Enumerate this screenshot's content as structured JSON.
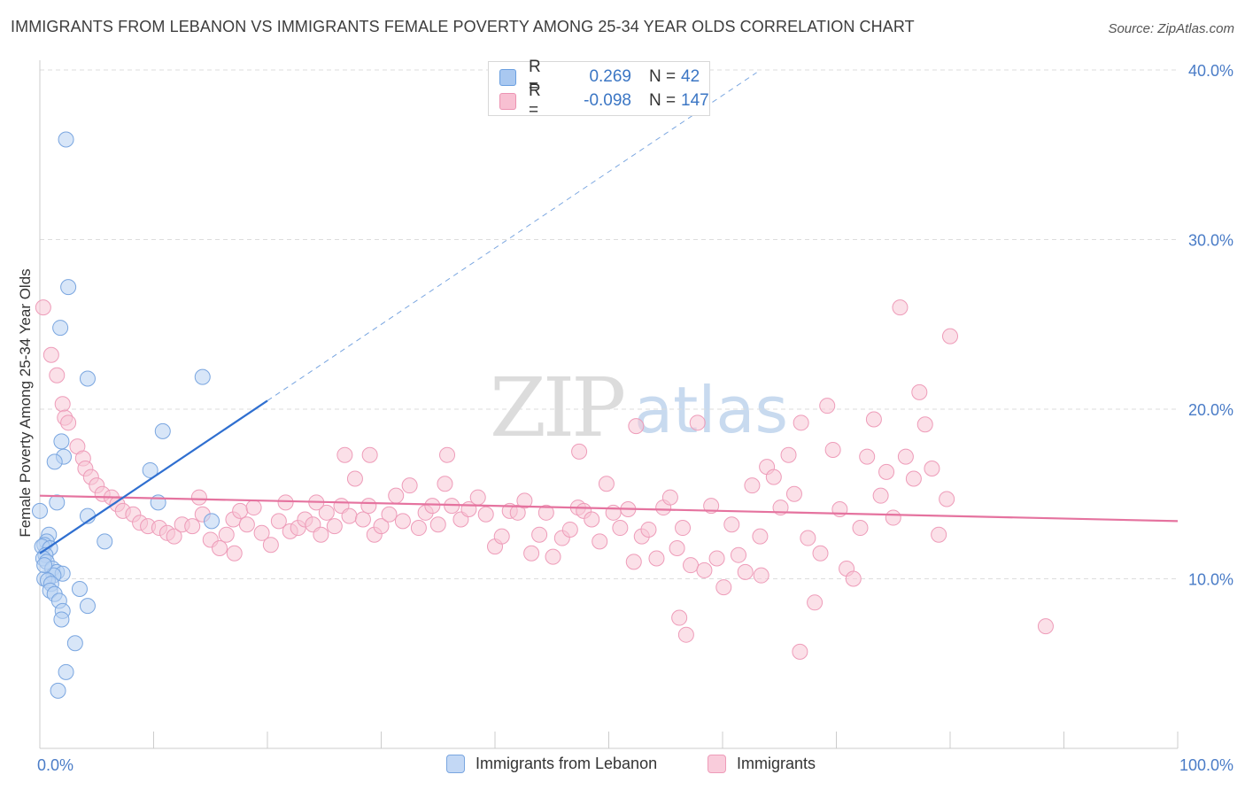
{
  "title": "IMMIGRANTS FROM LEBANON VS IMMIGRANTS FEMALE POVERTY AMONG 25-34 YEAR OLDS CORRELATION CHART",
  "source": "Source: ZipAtlas.com",
  "watermark": {
    "zip": "ZIP",
    "atlas": "atlas"
  },
  "legend_top": {
    "rows": [
      {
        "r_label": "R =",
        "r_value": "0.269",
        "n_label": "N =",
        "n_value": "42",
        "color": "#a9c8f0",
        "stroke": "#6a9fe0"
      },
      {
        "r_label": "R =",
        "r_value": "-0.098",
        "n_label": "N =",
        "n_value": "147",
        "color": "#f8c0d2",
        "stroke": "#ec93b2"
      }
    ]
  },
  "legend_bottom": {
    "items": [
      {
        "label": "Immigrants from Lebanon",
        "color": "#c3d8f5",
        "stroke": "#7aa6e0"
      },
      {
        "label": "Immigrants",
        "color": "#f9ccdb",
        "stroke": "#ee9cb9"
      }
    ]
  },
  "chart_data": {
    "type": "scatter",
    "ylabel": "Female Poverty Among 25-34 Year Olds",
    "xlim": [
      0,
      100
    ],
    "ylim": [
      0,
      40
    ],
    "x_tick_labels": [
      {
        "value": 0,
        "label": "0.0%"
      },
      {
        "value": 100,
        "label": "100.0%"
      }
    ],
    "y_tick_labels": [
      {
        "value": 10,
        "label": "10.0%"
      },
      {
        "value": 20,
        "label": "20.0%"
      },
      {
        "value": 30,
        "label": "30.0%"
      },
      {
        "value": 40,
        "label": "40.0%"
      }
    ],
    "grid": true,
    "series": [
      {
        "name": "Immigrants from Lebanon",
        "color": "#7aa6e0",
        "fill": "#b8d2f3",
        "trend": {
          "color": "#2f6fd0",
          "x0": 0,
          "y0": 11.5,
          "x1": 20,
          "y1": 20.5,
          "dash_to_x": 63
        },
        "points": [
          [
            2.3,
            35.9
          ],
          [
            2.5,
            27.2
          ],
          [
            1.8,
            24.8
          ],
          [
            4.2,
            21.8
          ],
          [
            14.3,
            21.9
          ],
          [
            10.8,
            18.7
          ],
          [
            1.9,
            18.1
          ],
          [
            2.1,
            17.2
          ],
          [
            1.3,
            16.9
          ],
          [
            9.7,
            16.4
          ],
          [
            10.4,
            14.5
          ],
          [
            1.5,
            14.5
          ],
          [
            0.0,
            14.0
          ],
          [
            4.2,
            13.7
          ],
          [
            15.1,
            13.4
          ],
          [
            0.8,
            12.6
          ],
          [
            0.6,
            12.2
          ],
          [
            5.7,
            12.2
          ],
          [
            0.4,
            12.0
          ],
          [
            0.2,
            11.9
          ],
          [
            0.9,
            11.8
          ],
          [
            0.5,
            11.4
          ],
          [
            0.3,
            11.2
          ],
          [
            0.6,
            11.0
          ],
          [
            1.1,
            10.6
          ],
          [
            1.5,
            10.4
          ],
          [
            2.0,
            10.3
          ],
          [
            1.2,
            10.2
          ],
          [
            0.4,
            10.0
          ],
          [
            0.7,
            9.9
          ],
          [
            1.0,
            9.7
          ],
          [
            3.5,
            9.4
          ],
          [
            0.9,
            9.3
          ],
          [
            1.3,
            9.1
          ],
          [
            1.7,
            8.7
          ],
          [
            4.2,
            8.4
          ],
          [
            2.0,
            8.1
          ],
          [
            1.9,
            7.6
          ],
          [
            3.1,
            6.2
          ],
          [
            2.3,
            4.5
          ],
          [
            1.6,
            3.4
          ],
          [
            0.4,
            10.8
          ]
        ]
      },
      {
        "name": "Immigrants",
        "color": "#ee9cb9",
        "fill": "#f8c6d6",
        "trend": {
          "color": "#e5739f",
          "x0": 0,
          "y0": 14.9,
          "x1": 100,
          "y1": 13.4
        },
        "points": [
          [
            0.3,
            26.0
          ],
          [
            1.0,
            23.2
          ],
          [
            1.5,
            22.0
          ],
          [
            2.0,
            20.3
          ],
          [
            2.2,
            19.5
          ],
          [
            2.5,
            19.2
          ],
          [
            3.3,
            17.8
          ],
          [
            3.8,
            17.1
          ],
          [
            4.0,
            16.5
          ],
          [
            4.5,
            16.0
          ],
          [
            5.0,
            15.5
          ],
          [
            5.5,
            15.0
          ],
          [
            6.3,
            14.8
          ],
          [
            6.8,
            14.4
          ],
          [
            7.3,
            14.0
          ],
          [
            8.2,
            13.8
          ],
          [
            8.8,
            13.3
          ],
          [
            9.5,
            13.1
          ],
          [
            10.5,
            13.0
          ],
          [
            11.2,
            12.7
          ],
          [
            11.8,
            12.5
          ],
          [
            12.5,
            13.2
          ],
          [
            13.4,
            13.1
          ],
          [
            14.3,
            13.8
          ],
          [
            14.0,
            14.8
          ],
          [
            15.0,
            12.3
          ],
          [
            15.8,
            11.8
          ],
          [
            16.4,
            12.6
          ],
          [
            17.0,
            13.5
          ],
          [
            17.6,
            14.0
          ],
          [
            18.2,
            13.2
          ],
          [
            18.8,
            14.2
          ],
          [
            19.5,
            12.7
          ],
          [
            20.3,
            12.0
          ],
          [
            21.0,
            13.4
          ],
          [
            21.6,
            14.5
          ],
          [
            22.0,
            12.8
          ],
          [
            22.7,
            13.0
          ],
          [
            23.3,
            13.5
          ],
          [
            24.0,
            13.2
          ],
          [
            24.7,
            12.6
          ],
          [
            25.2,
            13.9
          ],
          [
            25.9,
            13.1
          ],
          [
            26.5,
            14.3
          ],
          [
            27.2,
            13.7
          ],
          [
            27.7,
            15.9
          ],
          [
            28.4,
            13.5
          ],
          [
            28.9,
            14.3
          ],
          [
            29.4,
            12.6
          ],
          [
            30.0,
            13.1
          ],
          [
            30.7,
            13.8
          ],
          [
            31.3,
            14.9
          ],
          [
            31.9,
            13.4
          ],
          [
            32.5,
            15.5
          ],
          [
            33.3,
            13.0
          ],
          [
            33.9,
            13.9
          ],
          [
            34.5,
            14.3
          ],
          [
            35.0,
            13.2
          ],
          [
            35.6,
            15.6
          ],
          [
            36.2,
            14.3
          ],
          [
            37.0,
            13.5
          ],
          [
            37.7,
            14.1
          ],
          [
            38.5,
            14.8
          ],
          [
            39.2,
            13.8
          ],
          [
            40.0,
            11.9
          ],
          [
            40.6,
            12.5
          ],
          [
            41.3,
            14.0
          ],
          [
            42.0,
            13.9
          ],
          [
            42.6,
            14.6
          ],
          [
            43.2,
            11.5
          ],
          [
            43.9,
            12.6
          ],
          [
            44.5,
            13.9
          ],
          [
            45.1,
            11.3
          ],
          [
            45.9,
            12.4
          ],
          [
            46.6,
            12.9
          ],
          [
            47.3,
            14.2
          ],
          [
            47.8,
            14.0
          ],
          [
            48.5,
            13.5
          ],
          [
            49.2,
            12.2
          ],
          [
            49.8,
            15.6
          ],
          [
            50.4,
            13.9
          ],
          [
            51.0,
            13.0
          ],
          [
            51.7,
            14.1
          ],
          [
            52.2,
            11.0
          ],
          [
            52.9,
            12.5
          ],
          [
            53.5,
            12.9
          ],
          [
            54.2,
            11.2
          ],
          [
            54.8,
            14.2
          ],
          [
            55.4,
            14.8
          ],
          [
            56.0,
            11.8
          ],
          [
            56.5,
            13.0
          ],
          [
            57.2,
            10.8
          ],
          [
            57.8,
            19.2
          ],
          [
            58.4,
            10.5
          ],
          [
            59.0,
            14.3
          ],
          [
            59.5,
            11.2
          ],
          [
            60.1,
            9.5
          ],
          [
            60.8,
            13.2
          ],
          [
            61.4,
            11.4
          ],
          [
            62.0,
            10.4
          ],
          [
            62.6,
            15.5
          ],
          [
            63.3,
            12.5
          ],
          [
            63.9,
            16.6
          ],
          [
            64.5,
            16.0
          ],
          [
            65.1,
            14.2
          ],
          [
            65.8,
            17.3
          ],
          [
            66.3,
            15.0
          ],
          [
            66.9,
            19.2
          ],
          [
            67.5,
            12.4
          ],
          [
            68.1,
            8.6
          ],
          [
            68.6,
            11.5
          ],
          [
            69.2,
            20.2
          ],
          [
            69.7,
            17.6
          ],
          [
            70.3,
            14.1
          ],
          [
            70.9,
            10.6
          ],
          [
            71.5,
            10.0
          ],
          [
            72.1,
            13.0
          ],
          [
            72.7,
            17.2
          ],
          [
            73.3,
            19.4
          ],
          [
            73.9,
            14.9
          ],
          [
            74.4,
            16.3
          ],
          [
            75.0,
            13.6
          ],
          [
            75.6,
            26.0
          ],
          [
            76.1,
            17.2
          ],
          [
            76.8,
            15.9
          ],
          [
            77.3,
            21.0
          ],
          [
            77.8,
            19.1
          ],
          [
            78.4,
            16.5
          ],
          [
            79.0,
            12.6
          ],
          [
            80.0,
            24.3
          ],
          [
            17.1,
            11.5
          ],
          [
            26.8,
            17.3
          ],
          [
            29.0,
            17.3
          ],
          [
            35.8,
            17.3
          ],
          [
            24.3,
            14.5
          ],
          [
            47.4,
            17.5
          ],
          [
            52.4,
            19.0
          ],
          [
            56.2,
            7.7
          ],
          [
            56.8,
            6.7
          ],
          [
            63.4,
            10.2
          ],
          [
            66.8,
            5.7
          ],
          [
            88.4,
            7.2
          ],
          [
            79.7,
            14.7
          ]
        ]
      }
    ]
  }
}
